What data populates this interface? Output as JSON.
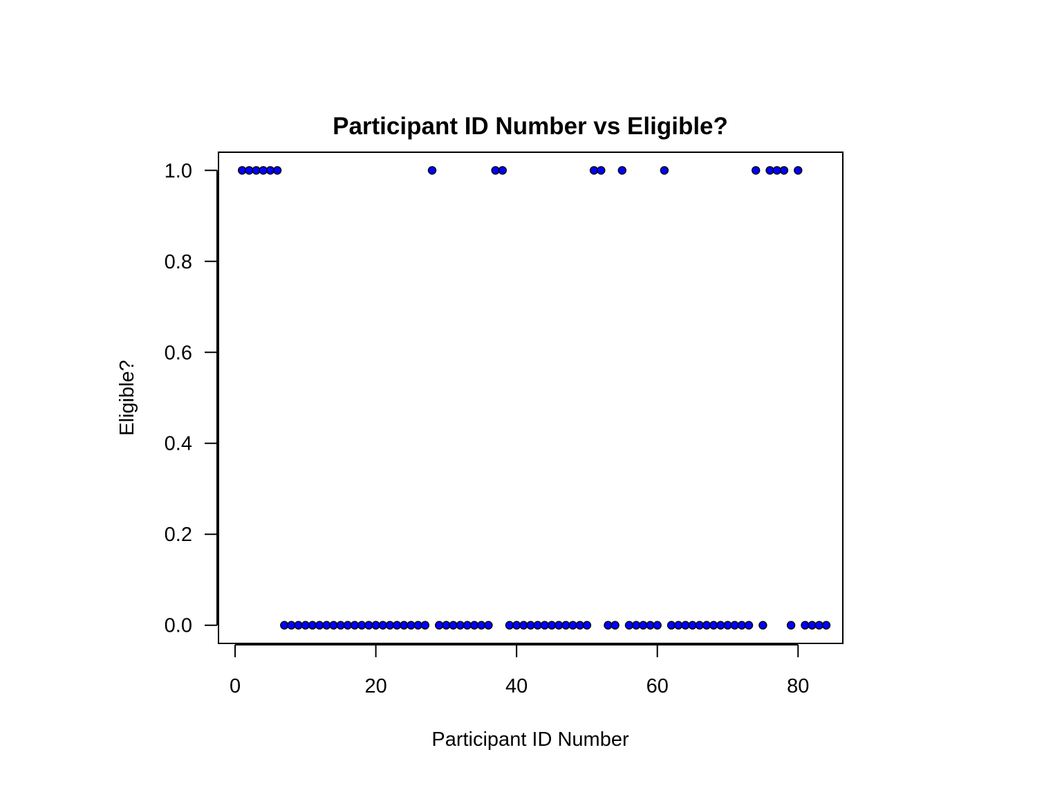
{
  "chart_data": {
    "type": "scatter",
    "title": "Participant ID Number vs Eligible?",
    "xlabel": "Participant ID Number",
    "ylabel": "Eligible?",
    "xlim": [
      -2.36,
      86.36
    ],
    "ylim": [
      -0.04,
      1.04
    ],
    "xticks": [
      0,
      20,
      40,
      60,
      80
    ],
    "yticks": [
      0.0,
      0.2,
      0.4,
      0.6,
      0.8,
      1.0
    ],
    "xtick_labels": [
      "0",
      "20",
      "40",
      "60",
      "80"
    ],
    "ytick_labels": [
      "0.0",
      "0.2",
      "0.4",
      "0.6",
      "0.8",
      "1.0"
    ],
    "grid": false,
    "legend": "none",
    "marker_fill": "#0000ff",
    "marker_edge": "#000000",
    "x": [
      1,
      2,
      3,
      4,
      5,
      6,
      7,
      8,
      9,
      10,
      11,
      12,
      13,
      14,
      15,
      16,
      17,
      18,
      19,
      20,
      21,
      22,
      23,
      24,
      25,
      26,
      27,
      28,
      29,
      30,
      31,
      32,
      33,
      34,
      35,
      36,
      37,
      38,
      39,
      40,
      41,
      42,
      43,
      44,
      45,
      46,
      47,
      48,
      49,
      50,
      51,
      52,
      53,
      54,
      55,
      56,
      57,
      58,
      59,
      60,
      61,
      62,
      63,
      64,
      65,
      66,
      67,
      68,
      69,
      70,
      71,
      72,
      73,
      74,
      75,
      76,
      77,
      78,
      79,
      80,
      81,
      82,
      83,
      84
    ],
    "y": [
      1,
      1,
      1,
      1,
      1,
      1,
      0,
      0,
      0,
      0,
      0,
      0,
      0,
      0,
      0,
      0,
      0,
      0,
      0,
      0,
      0,
      0,
      0,
      0,
      0,
      0,
      0,
      1,
      0,
      0,
      0,
      0,
      0,
      0,
      0,
      0,
      1,
      1,
      0,
      0,
      0,
      0,
      0,
      0,
      0,
      0,
      0,
      0,
      0,
      0,
      1,
      1,
      0,
      0,
      1,
      0,
      0,
      0,
      0,
      0,
      1,
      0,
      0,
      0,
      0,
      0,
      0,
      0,
      0,
      0,
      0,
      0,
      0,
      1,
      0,
      1,
      1,
      1,
      0,
      1,
      0,
      0,
      0,
      0
    ]
  }
}
